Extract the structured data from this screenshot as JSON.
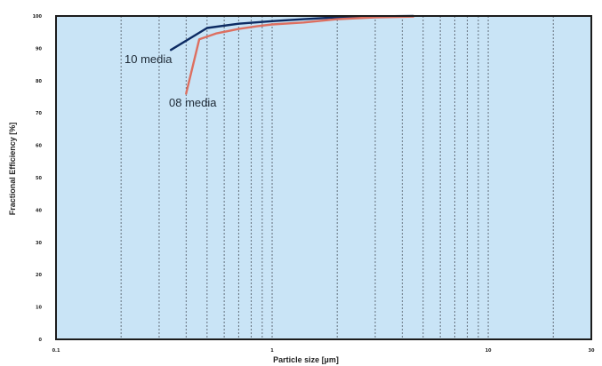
{
  "chart_data": {
    "type": "line",
    "title": "",
    "xlabel": "Particle size [µm]",
    "ylabel": "Fractional Efficiency [%]",
    "x_scale": "log",
    "xlim": [
      0.1,
      30
    ],
    "ylim": [
      0,
      100
    ],
    "x_ticks": [
      "0.1",
      "1",
      "10",
      "30"
    ],
    "y_ticks": [
      "0",
      "10",
      "20",
      "30",
      "40",
      "50",
      "60",
      "70",
      "80",
      "90",
      "100"
    ],
    "grid": true,
    "x_gridlines": [
      0.2,
      0.3,
      0.4,
      0.5,
      0.6,
      0.7,
      0.8,
      0.9,
      1,
      2,
      3,
      4,
      5,
      6,
      7,
      8,
      9,
      10,
      20
    ],
    "plot_background": "#c9e4f6",
    "series": [
      {
        "name": "10 media",
        "color": "#0d2b63",
        "x": [
          0.34,
          0.5,
          0.7,
          1.0,
          1.4,
          2.0,
          3.0,
          4.5
        ],
        "y": [
          89.5,
          96.3,
          97.6,
          98.4,
          99.0,
          99.6,
          99.9,
          100.0
        ]
      },
      {
        "name": "08 media",
        "color": "#dd6f60",
        "x": [
          0.4,
          0.46,
          0.55,
          0.7,
          0.85,
          1.0,
          1.4,
          2.0,
          3.0,
          4.5
        ],
        "y": [
          76.0,
          92.8,
          94.6,
          96.0,
          96.8,
          97.4,
          98.0,
          99.0,
          99.6,
          99.8
        ]
      }
    ]
  }
}
